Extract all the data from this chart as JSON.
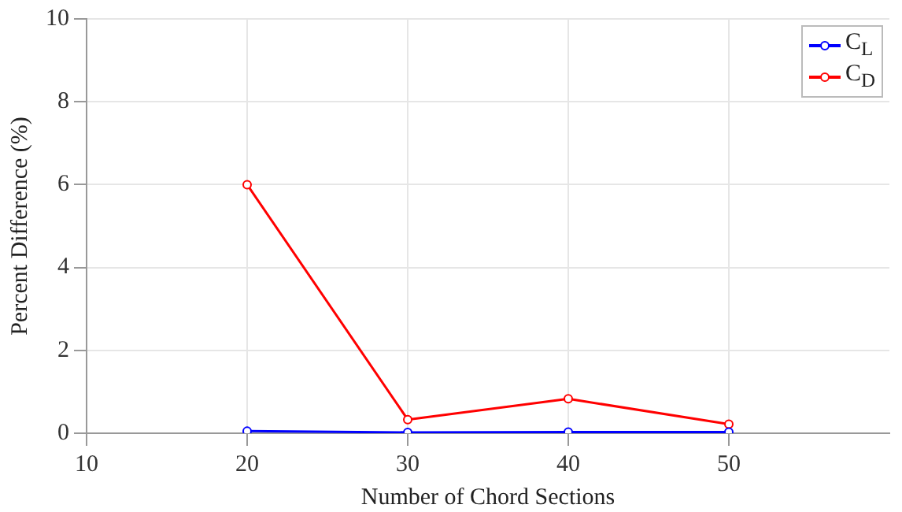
{
  "chart_data": {
    "type": "line",
    "xlabel": "Number of Chord Sections",
    "ylabel": "Percent Difference (%)",
    "x": [
      20,
      30,
      40,
      50
    ],
    "series": [
      {
        "name": "C$_{L}$",
        "color": "#0000ff",
        "values": [
          0.05,
          0.02,
          0.03,
          0.03
        ]
      },
      {
        "name": "C$_{D}$",
        "color": "#ff0000",
        "values": [
          6.0,
          0.33,
          0.83,
          0.22
        ]
      }
    ],
    "xlim": [
      10,
      60
    ],
    "xticks": [
      10,
      20,
      30,
      40,
      50
    ],
    "ylim": [
      0,
      10
    ],
    "yticks": [
      0,
      2,
      4,
      6,
      8,
      10
    ],
    "grid": true,
    "legend": "top right",
    "marker": "circle",
    "line_style": "solid"
  }
}
